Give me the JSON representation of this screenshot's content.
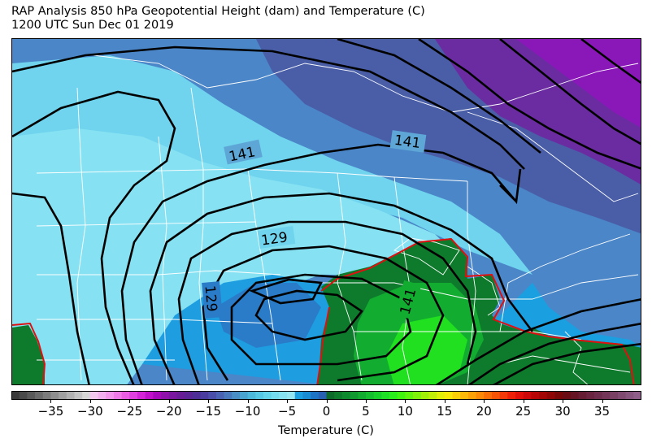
{
  "title": {
    "line1": "RAP Analysis 850 hPa Geopotential Height (dam) and Temperature (C)",
    "line2": "1200 UTC Sun Dec 01 2019"
  },
  "map": {
    "contour_color": "#000000",
    "freezing_line_color": "#e01010",
    "border_color": "#ffffff",
    "contour_labels": [
      "141",
      "141",
      "129",
      "129",
      "141"
    ]
  },
  "colorbar": {
    "label": "Temperature (C)",
    "min": -40,
    "max": 40,
    "ticks": [
      "−35",
      "−30",
      "−25",
      "−20",
      "−15",
      "−10",
      "−5",
      "0",
      "5",
      "10",
      "15",
      "20",
      "25",
      "30",
      "35"
    ],
    "tick_values": [
      -35,
      -30,
      -25,
      -20,
      -15,
      -10,
      -5,
      0,
      5,
      10,
      15,
      20,
      25,
      30,
      35
    ],
    "colors": [
      "#3a3a3a",
      "#4a4a4a",
      "#5a5a5a",
      "#6b6b6b",
      "#7c7c7c",
      "#8e8e8e",
      "#a0a0a0",
      "#b2b2b2",
      "#c4c4c4",
      "#d6d6d6",
      "#f2c8ee",
      "#f4b0ee",
      "#f496ec",
      "#f07ae8",
      "#ea5ee4",
      "#e040de",
      "#d424d8",
      "#c010cc",
      "#a808bc",
      "#9010ac",
      "#7a16a0",
      "#681c96",
      "#5a2494",
      "#4c2e96",
      "#4a3c9e",
      "#4a4ea8",
      "#4a62b2",
      "#4a78bc",
      "#4a8ec6",
      "#4aa4d0",
      "#4cb8da",
      "#56c8e4",
      "#64d4ea",
      "#74dcee",
      "#86e2f0",
      "#96e6f2",
      "#1ea0e0",
      "#1a8cd4",
      "#1e74c4",
      "#2860b4",
      "#0e6a2a",
      "#0e7a2c",
      "#0e8a2e",
      "#109a30",
      "#12ac30",
      "#14be2e",
      "#18d02a",
      "#1ee024",
      "#2aee1c",
      "#40f410",
      "#60f40c",
      "#80f20a",
      "#a0f008",
      "#c0ee08",
      "#e0ee08",
      "#f8e808",
      "#fcd008",
      "#fcb808",
      "#fca008",
      "#fc8808",
      "#fa6e08",
      "#f85408",
      "#f43a08",
      "#ee2008",
      "#e01008",
      "#cc0808",
      "#b80606",
      "#a40606",
      "#8e0606",
      "#780808",
      "#6a0c14",
      "#661424",
      "#661c32",
      "#6a2440",
      "#6e2c4c",
      "#743658",
      "#7a4064",
      "#804a70",
      "#86547c",
      "#8e5e88"
    ]
  }
}
